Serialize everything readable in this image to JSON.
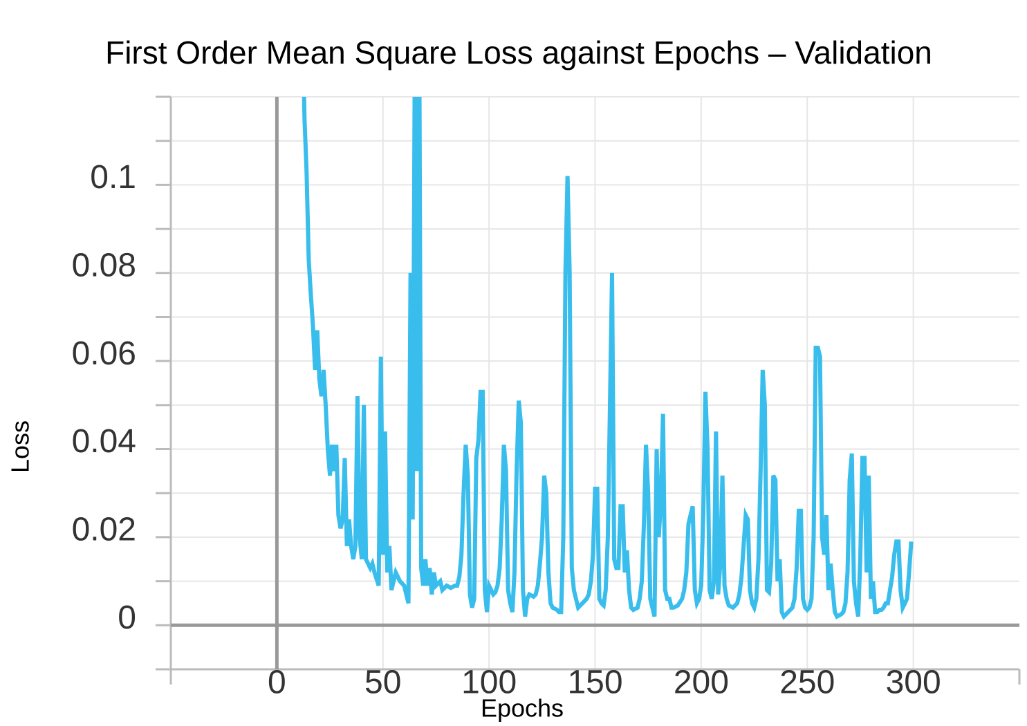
{
  "chart_data": {
    "type": "line",
    "title": "First Order Mean Square Loss against Epochs – Validation",
    "x_label": "Epochs",
    "y_label": "Loss",
    "xlim": [
      -50,
      350
    ],
    "ylim": [
      -0.01,
      0.12
    ],
    "xticks": [
      0,
      50,
      100,
      150,
      200,
      250,
      300
    ],
    "yticks": [
      0,
      0.02,
      0.04,
      0.06,
      0.08,
      0.1
    ],
    "yticks_minor": [
      -0.01,
      0.01,
      0.03,
      0.05,
      0.07,
      0.09,
      0.11,
      0.12
    ],
    "grid": true,
    "zero_lines": true,
    "series": [
      {
        "color": "#38bdec",
        "x": [
          12,
          13,
          14,
          15,
          16,
          17,
          18,
          19,
          20,
          21,
          22,
          23,
          24,
          25,
          26,
          27,
          28,
          29,
          30,
          31,
          32,
          33,
          34,
          35,
          36,
          37,
          38,
          39,
          40,
          41,
          42,
          44,
          45,
          46,
          48,
          49,
          50,
          51,
          52,
          53,
          54,
          56,
          58,
          60,
          62,
          63,
          64,
          65,
          66,
          67,
          68,
          69,
          70,
          71,
          72,
          73,
          74,
          75,
          77,
          78,
          80,
          82,
          84,
          85,
          86,
          87,
          88,
          89,
          90,
          91,
          92,
          93,
          94,
          95,
          96,
          97,
          98,
          99,
          100,
          101,
          102,
          103,
          104,
          105,
          106,
          107,
          108,
          109,
          110,
          111,
          112,
          113,
          114,
          115,
          116,
          117,
          118,
          119,
          121,
          122,
          123,
          124,
          125,
          126,
          127,
          128,
          129,
          130,
          132,
          133,
          134,
          135,
          136,
          137,
          138,
          139,
          140,
          141,
          142,
          144,
          146,
          147,
          148,
          149,
          150,
          151,
          152,
          153,
          154,
          155,
          156,
          157,
          158,
          159,
          160,
          161,
          162,
          163,
          164,
          165,
          166,
          167,
          168,
          170,
          171,
          172,
          173,
          174,
          175,
          176,
          177,
          178,
          179,
          180,
          181,
          182,
          183,
          184,
          185,
          186,
          187,
          189,
          191,
          192,
          193,
          194,
          195,
          196,
          197,
          198,
          199,
          200,
          201,
          202,
          203,
          204,
          205,
          206,
          207,
          208,
          209,
          210,
          211,
          212,
          213,
          215,
          217,
          218,
          219,
          220,
          221,
          222,
          223,
          224,
          225,
          226,
          227,
          228,
          229,
          230,
          231,
          232,
          233,
          234,
          235,
          236,
          237,
          238,
          239,
          241,
          243,
          244,
          245,
          246,
          247,
          248,
          249,
          250,
          251,
          252,
          253,
          254,
          255,
          256,
          257,
          258,
          259,
          260,
          261,
          262,
          263,
          264,
          266,
          267,
          268,
          269,
          270,
          271,
          272,
          273,
          274,
          275,
          276,
          277,
          278,
          279,
          280,
          281,
          282,
          283,
          284,
          285,
          286,
          287,
          288,
          289,
          290,
          291,
          292,
          293,
          294,
          295,
          296,
          297,
          298,
          299
        ],
        "values": [
          0.14,
          0.115,
          0.103,
          0.083,
          0.075,
          0.068,
          0.058,
          0.067,
          0.056,
          0.052,
          0.058,
          0.05,
          0.04,
          0.034,
          0.041,
          0.035,
          0.041,
          0.025,
          0.022,
          0.024,
          0.038,
          0.018,
          0.024,
          0.018,
          0.015,
          0.018,
          0.052,
          0.02,
          0.015,
          0.05,
          0.015,
          0.013,
          0.014,
          0.012,
          0.009,
          0.061,
          0.016,
          0.044,
          0.012,
          0.018,
          0.008,
          0.012,
          0.01,
          0.009,
          0.005,
          0.08,
          0.024,
          0.13,
          0.035,
          0.15,
          0.013,
          0.009,
          0.015,
          0.009,
          0.013,
          0.007,
          0.012,
          0.009,
          0.01,
          0.008,
          0.009,
          0.0085,
          0.009,
          0.009,
          0.011,
          0.016,
          0.03,
          0.041,
          0.034,
          0.007,
          0.004,
          0.006,
          0.038,
          0.042,
          0.053,
          0.053,
          0.008,
          0.003,
          0.009,
          0.008,
          0.007,
          0.0075,
          0.009,
          0.013,
          0.024,
          0.041,
          0.035,
          0.008,
          0.005,
          0.003,
          0.012,
          0.035,
          0.051,
          0.046,
          0.008,
          0.002,
          0.006,
          0.007,
          0.0065,
          0.007,
          0.009,
          0.014,
          0.02,
          0.034,
          0.03,
          0.012,
          0.005,
          0.004,
          0.0035,
          0.003,
          0.003,
          0.02,
          0.08,
          0.102,
          0.08,
          0.013,
          0.008,
          0.006,
          0.004,
          0.005,
          0.006,
          0.007,
          0.01,
          0.016,
          0.031,
          0.031,
          0.006,
          0.005,
          0.0045,
          0.008,
          0.02,
          0.05,
          0.08,
          0.015,
          0.013,
          0.013,
          0.027,
          0.027,
          0.012,
          0.017,
          0.008,
          0.004,
          0.0035,
          0.004,
          0.006,
          0.01,
          0.023,
          0.041,
          0.03,
          0.006,
          0.004,
          0.002,
          0.04,
          0.02,
          0.028,
          0.048,
          0.008,
          0.006,
          0.006,
          0.004,
          0.004,
          0.0045,
          0.006,
          0.008,
          0.012,
          0.023,
          0.025,
          0.027,
          0.008,
          0.005,
          0.006,
          0.009,
          0.025,
          0.053,
          0.04,
          0.008,
          0.006,
          0.01,
          0.044,
          0.007,
          0.014,
          0.034,
          0.009,
          0.006,
          0.0045,
          0.004,
          0.005,
          0.007,
          0.011,
          0.018,
          0.025,
          0.024,
          0.008,
          0.005,
          0.004,
          0.006,
          0.015,
          0.035,
          0.058,
          0.05,
          0.008,
          0.0075,
          0.014,
          0.034,
          0.033,
          0.01,
          0.015,
          0.003,
          0.002,
          0.003,
          0.004,
          0.006,
          0.013,
          0.026,
          0.026,
          0.006,
          0.004,
          0.0035,
          0.004,
          0.006,
          0.02,
          0.063,
          0.063,
          0.061,
          0.02,
          0.016,
          0.025,
          0.008,
          0.014,
          0.008,
          0.003,
          0.002,
          0.0025,
          0.003,
          0.005,
          0.012,
          0.033,
          0.039,
          0.01,
          0.005,
          0.002,
          0.015,
          0.038,
          0.038,
          0.012,
          0.034,
          0.006,
          0.01,
          0.003,
          0.003,
          0.0035,
          0.0035,
          0.004,
          0.005,
          0.005,
          0.008,
          0.011,
          0.016,
          0.019,
          0.019,
          0.008,
          0.004,
          0.005,
          0.006,
          0.012,
          0.019
        ]
      }
    ]
  }
}
